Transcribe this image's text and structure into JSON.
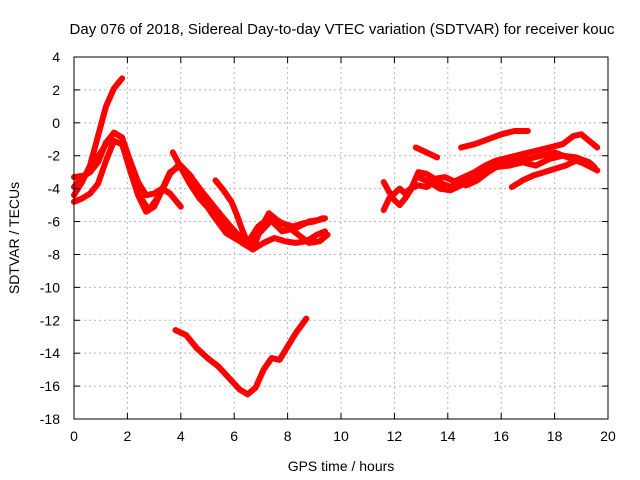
{
  "chart_data": {
    "type": "line",
    "title": "Day 076 of 2018, Sidereal Day-to-day VTEC variation (SDTVAR) for receiver kouc",
    "xlabel": "GPS time / hours",
    "ylabel": "SDTVAR / TECUs",
    "xlim": [
      0,
      20
    ],
    "ylim": [
      -18,
      4
    ],
    "x_ticks": [
      0,
      2,
      4,
      6,
      8,
      10,
      12,
      14,
      16,
      18,
      20
    ],
    "y_ticks": [
      4,
      2,
      0,
      -2,
      -4,
      -6,
      -8,
      -10,
      -12,
      -14,
      -16,
      -18
    ],
    "grid": true,
    "series_color": "#ff0000",
    "series": [
      {
        "name": "arc-1",
        "x": [
          0.0,
          0.3,
          0.6,
          0.9,
          1.2,
          1.5,
          1.8
        ],
        "y": [
          -4.4,
          -3.6,
          -2.6,
          -0.8,
          1.0,
          2.1,
          2.7
        ]
      },
      {
        "name": "arc-2",
        "x": [
          0.0,
          0.3,
          0.6,
          0.9,
          1.2,
          1.5,
          1.8,
          2.1,
          2.4,
          2.7,
          3.0,
          3.3,
          3.6,
          4.0
        ],
        "y": [
          -3.9,
          -3.3,
          -3.0,
          -2.4,
          -1.2,
          -0.6,
          -0.9,
          -2.3,
          -3.6,
          -4.4,
          -4.3,
          -4.0,
          -4.3,
          -5.1
        ]
      },
      {
        "name": "arc-3",
        "x": [
          0.0,
          0.3,
          0.6,
          0.9,
          1.2,
          1.5,
          1.8,
          2.1,
          2.4,
          2.7,
          3.0,
          3.3,
          3.6,
          3.9,
          4.3,
          4.8,
          5.3,
          5.8,
          6.2,
          6.6,
          7.0,
          7.4,
          7.8,
          8.2,
          8.6,
          9.0,
          9.3
        ],
        "y": [
          -4.8,
          -4.6,
          -4.3,
          -3.7,
          -2.3,
          -1.1,
          -1.3,
          -2.9,
          -4.4,
          -5.4,
          -5.1,
          -4.1,
          -3.1,
          -2.6,
          -3.1,
          -4.2,
          -5.2,
          -6.2,
          -6.9,
          -7.2,
          -6.6,
          -5.9,
          -6.1,
          -6.3,
          -6.1,
          -6.0,
          -5.8
        ]
      },
      {
        "name": "arc-4",
        "x": [
          0.0,
          0.4,
          0.8,
          1.2,
          1.5,
          1.8,
          2.1,
          2.4,
          2.8,
          3.2,
          3.6,
          4.0,
          4.4,
          4.8,
          5.2,
          5.7,
          6.1,
          6.5,
          6.9,
          7.3,
          7.8,
          8.3,
          8.8,
          9.2,
          9.4
        ],
        "y": [
          -3.3,
          -3.2,
          -2.3,
          -1.3,
          -0.6,
          -0.9,
          -2.6,
          -4.3,
          -5.3,
          -4.4,
          -3.0,
          -2.6,
          -3.3,
          -4.6,
          -5.6,
          -6.7,
          -7.1,
          -7.3,
          -6.3,
          -5.8,
          -6.6,
          -6.4,
          -6.0,
          -5.9,
          -5.8
        ]
      },
      {
        "name": "arc-5",
        "x": [
          3.7,
          3.9,
          4.3,
          4.7,
          5.1,
          5.5,
          5.9,
          6.3,
          6.7,
          7.1,
          7.5,
          7.9,
          8.3,
          8.7,
          9.1,
          9.4
        ],
        "y": [
          -1.8,
          -2.4,
          -3.6,
          -4.6,
          -5.3,
          -6.1,
          -6.8,
          -7.3,
          -7.7,
          -7.3,
          -7.0,
          -7.2,
          -7.3,
          -7.2,
          -6.8,
          -6.6
        ]
      },
      {
        "name": "arc-6",
        "x": [
          5.3,
          5.6,
          5.9,
          6.1,
          6.3,
          6.5,
          6.7,
          7.0,
          7.3,
          7.6,
          8.0,
          8.4,
          8.8,
          9.2,
          9.5
        ],
        "y": [
          -3.5,
          -4.1,
          -4.8,
          -5.6,
          -6.5,
          -7.3,
          -7.7,
          -6.4,
          -5.5,
          -5.9,
          -6.3,
          -6.8,
          -7.3,
          -7.2,
          -6.8
        ]
      },
      {
        "name": "arc-7",
        "x": [
          3.8,
          4.2,
          4.6,
          5.0,
          5.4,
          5.8,
          6.2,
          6.5,
          6.8,
          7.1,
          7.4,
          7.7,
          8.0,
          8.3,
          8.7
        ],
        "y": [
          -12.6,
          -12.9,
          -13.7,
          -14.3,
          -14.8,
          -15.5,
          -16.2,
          -16.5,
          -16.1,
          -15.0,
          -14.3,
          -14.4,
          -13.6,
          -12.8,
          -11.9
        ]
      },
      {
        "name": "arc-8",
        "x": [
          11.6,
          11.8,
          12.0,
          12.2,
          12.4,
          12.6,
          12.9,
          13.2,
          13.5,
          13.8,
          14.1,
          14.4,
          14.7,
          15.0,
          15.3,
          15.6
        ],
        "y": [
          -5.3,
          -4.6,
          -4.3,
          -4.0,
          -4.3,
          -4.0,
          -3.8,
          -3.9,
          -3.6,
          -3.7,
          -3.9,
          -3.8,
          -3.4,
          -3.1,
          -2.8,
          -2.6
        ]
      },
      {
        "name": "arc-9",
        "x": [
          11.6,
          11.8,
          12.0,
          12.2,
          12.4,
          12.6,
          12.9,
          13.2,
          13.5,
          13.9,
          14.3,
          14.7,
          15.1,
          15.5,
          16.0,
          16.5,
          17.0,
          17.5,
          18.0,
          18.5,
          19.0,
          19.5
        ],
        "y": [
          -3.6,
          -4.2,
          -4.7,
          -5.0,
          -4.6,
          -4.1,
          -3.0,
          -3.1,
          -3.4,
          -3.3,
          -3.6,
          -3.8,
          -3.5,
          -3.0,
          -2.5,
          -2.3,
          -2.2,
          -2.0,
          -1.8,
          -2.1,
          -2.4,
          -2.8
        ]
      },
      {
        "name": "arc-10",
        "x": [
          12.9,
          13.3,
          13.7,
          14.1,
          14.5,
          14.9,
          15.3,
          15.8,
          16.3,
          16.8,
          17.3,
          17.8,
          18.3,
          18.8,
          19.3,
          19.5
        ],
        "y": [
          -3.3,
          -3.6,
          -4.0,
          -4.1,
          -3.8,
          -3.5,
          -3.1,
          -2.7,
          -2.6,
          -2.4,
          -2.6,
          -2.2,
          -2.0,
          -2.1,
          -2.4,
          -2.7
        ]
      },
      {
        "name": "arc-11",
        "x": [
          12.8,
          13.2,
          13.6
        ],
        "y": [
          -1.5,
          -1.8,
          -2.1
        ]
      },
      {
        "name": "arc-12",
        "x": [
          14.5,
          15.0,
          15.5,
          16.0,
          16.5,
          17.0
        ],
        "y": [
          -1.5,
          -1.3,
          -1.0,
          -0.7,
          -0.5,
          -0.5
        ]
      },
      {
        "name": "arc-13",
        "x": [
          14.2,
          14.6,
          15.0,
          15.4,
          15.8,
          16.3,
          16.8,
          17.3,
          17.8,
          18.3,
          18.7,
          19.0,
          19.3,
          19.6
        ],
        "y": [
          -3.6,
          -3.3,
          -3.0,
          -2.6,
          -2.3,
          -2.1,
          -1.9,
          -1.7,
          -1.5,
          -1.3,
          -0.8,
          -0.7,
          -1.1,
          -1.5
        ]
      },
      {
        "name": "arc-14",
        "x": [
          16.4,
          16.8,
          17.2,
          17.6,
          18.0,
          18.4,
          18.8,
          19.2,
          19.6
        ],
        "y": [
          -3.9,
          -3.5,
          -3.2,
          -3.0,
          -2.8,
          -2.6,
          -2.3,
          -2.5,
          -2.9
        ]
      }
    ]
  }
}
